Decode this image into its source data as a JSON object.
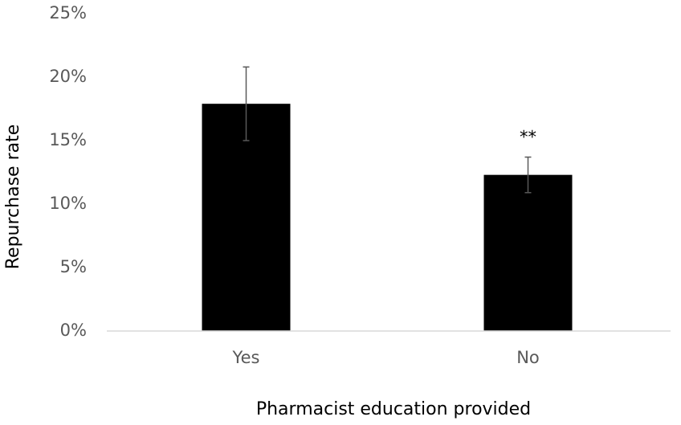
{
  "chart_data": {
    "type": "bar",
    "x_label": "Pharmacist education provided",
    "y_label": "Repurchase rate",
    "categories": [
      "Yes",
      "No"
    ],
    "values": [
      17.9,
      12.3
    ],
    "errors": [
      2.9,
      1.4
    ],
    "color": "#000000",
    "annotations": [
      {
        "text": "**",
        "category": "No"
      }
    ],
    "ylim": [
      0,
      25
    ],
    "yticks": [
      {
        "value": 0,
        "label": "0%"
      },
      {
        "value": 5,
        "label": "5%"
      },
      {
        "value": 10,
        "label": "10%"
      },
      {
        "value": 15,
        "label": "15%"
      },
      {
        "value": 20,
        "label": "20%"
      },
      {
        "value": 25,
        "label": "25%"
      }
    ],
    "grid": false
  }
}
